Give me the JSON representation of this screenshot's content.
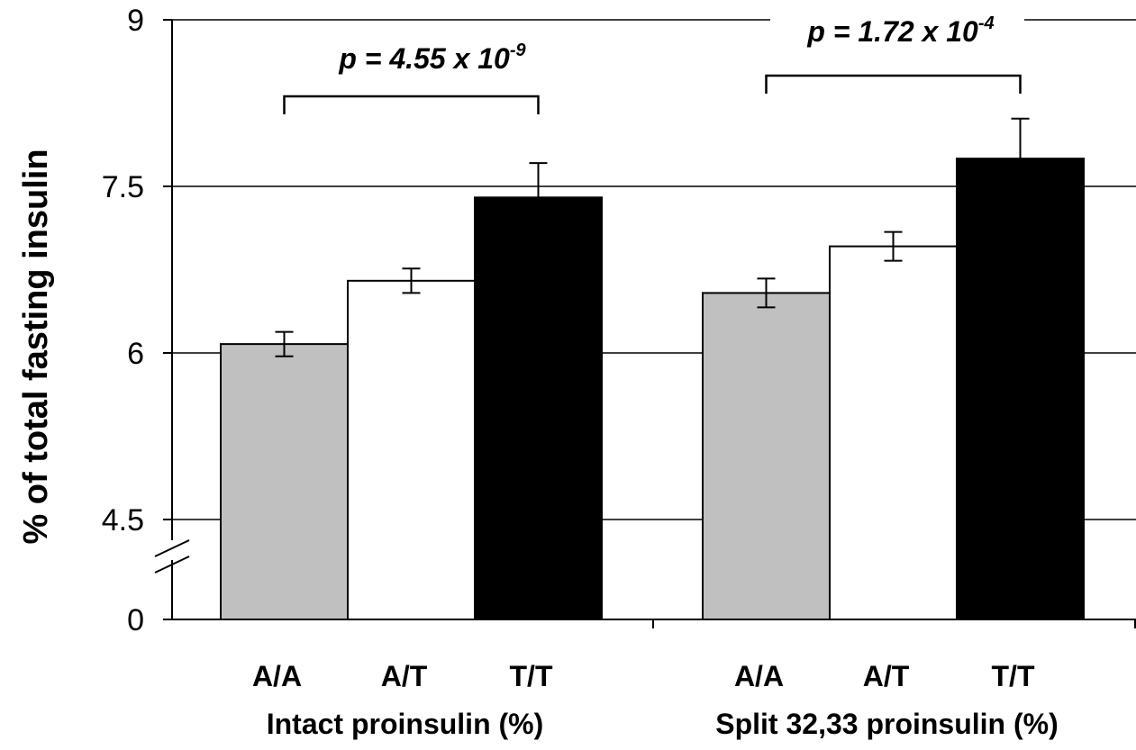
{
  "chart_data": {
    "type": "bar",
    "ylabel": "% of total fasting insulin",
    "y_ticks": [
      "0",
      "4.5",
      "6",
      "7.5",
      "9"
    ],
    "y_axis_break": {
      "from": 0,
      "to": 3.6
    },
    "ylim": [
      0,
      9
    ],
    "grid": "horizontal",
    "groups": [
      {
        "name": "Intact proinsulin (%)",
        "categories": [
          "A/A",
          "A/T",
          "T/T"
        ],
        "values": [
          6.08,
          6.65,
          7.4
        ],
        "errors": [
          0.11,
          0.11,
          0.31
        ],
        "colors": [
          "#c0c0c0",
          "#ffffff",
          "#000000"
        ],
        "pvalue": {
          "prefix": "p = 4.55 x 10",
          "exponent": "-9"
        }
      },
      {
        "name": "Split 32,33 proinsulin (%)",
        "categories": [
          "A/A",
          "A/T",
          "T/T"
        ],
        "values": [
          6.54,
          6.96,
          7.75
        ],
        "errors": [
          0.13,
          0.13,
          0.36
        ],
        "colors": [
          "#c0c0c0",
          "#ffffff",
          "#000000"
        ],
        "pvalue": {
          "prefix": "p = 1.72 x 10",
          "exponent": "-4"
        }
      }
    ]
  }
}
